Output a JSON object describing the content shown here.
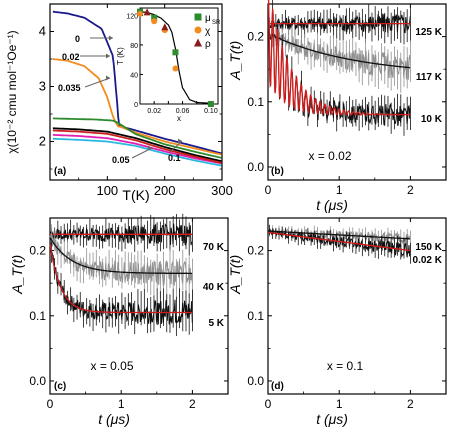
{
  "chart_data": [
    {
      "panel": "a",
      "type": "line",
      "ylabel": "χ(10⁻² cmu mol⁻¹Oe⁻¹)",
      "xlabel": "T(K)",
      "xlim": [
        0,
        300
      ],
      "ylim": [
        1.3,
        4.5
      ],
      "xticks": [
        "100",
        "200",
        "300"
      ],
      "yticks": [
        "2",
        "3",
        "4"
      ],
      "series": [
        {
          "name": "0",
          "color": "#1a1a8c",
          "x": [
            5,
            30,
            60,
            90,
            110,
            118,
            120,
            125,
            150,
            200,
            250,
            300
          ],
          "y": [
            4.36,
            4.33,
            4.25,
            4.05,
            3.55,
            2.6,
            2.28,
            2.27,
            2.2,
            2.05,
            1.92,
            1.78
          ]
        },
        {
          "name": "0.02",
          "color": "#f28c1f",
          "x": [
            5,
            30,
            60,
            85,
            100,
            110,
            118,
            125,
            150,
            200,
            250,
            300
          ],
          "y": [
            3.5,
            3.47,
            3.37,
            3.15,
            2.8,
            2.45,
            2.28,
            2.26,
            2.16,
            2.0,
            1.88,
            1.76
          ]
        },
        {
          "name": "0.035",
          "color": "#2e8b2e",
          "x": [
            5,
            40,
            80,
            110,
            120,
            150,
            200,
            250,
            300
          ],
          "y": [
            2.42,
            2.41,
            2.4,
            2.38,
            2.33,
            2.13,
            1.95,
            1.82,
            1.7
          ]
        },
        {
          "name": "0.05",
          "color": "#e020b0",
          "x": [
            5,
            50,
            100,
            150,
            200,
            250,
            300
          ],
          "y": [
            2.12,
            2.1,
            2.06,
            1.96,
            1.82,
            1.7,
            1.6
          ]
        },
        {
          "name": "0.1",
          "color": "#2bb8e0",
          "x": [
            5,
            50,
            100,
            150,
            200,
            250,
            300
          ],
          "y": [
            2.05,
            2.03,
            2.0,
            1.92,
            1.78,
            1.66,
            1.56
          ]
        },
        {
          "name": "",
          "color": "#000000",
          "x": [
            5,
            50,
            100,
            150,
            200,
            250,
            300
          ],
          "y": [
            2.24,
            2.22,
            2.18,
            2.06,
            1.9,
            1.76,
            1.64
          ]
        },
        {
          "name": "",
          "color": "#cc2020",
          "x": [
            5,
            50,
            100,
            150,
            200,
            250,
            300
          ],
          "y": [
            2.2,
            2.18,
            2.14,
            2.02,
            1.86,
            1.73,
            1.61
          ]
        }
      ],
      "labels": [
        "(a)",
        "0",
        "0.02",
        "0.035",
        "0.05",
        "0.1"
      ],
      "inset": {
        "xlabel": "x",
        "ylabel": "T (K)",
        "xlim": [
          0,
          0.11
        ],
        "ylim": [
          0,
          130
        ],
        "xticks": [
          "0.02",
          "0.04",
          "0.06",
          "0.08",
          "0.10"
        ],
        "yticks": [
          "0",
          "40",
          "80",
          "120"
        ],
        "curve": {
          "x": [
            0,
            0.01,
            0.02,
            0.03,
            0.04,
            0.045,
            0.05,
            0.055,
            0.06,
            0.07,
            0.08,
            0.1
          ],
          "y": [
            125,
            124,
            121,
            116,
            107,
            97,
            75,
            45,
            22,
            6,
            2,
            1
          ]
        },
        "legend": [
          {
            "label": "μ",
            "sub": "SR",
            "marker": "square",
            "color": "#2e8b2e"
          },
          {
            "label": "χ",
            "sub": "",
            "marker": "circle",
            "color": "#f28c1f"
          },
          {
            "label": "ρ",
            "sub": "",
            "marker": "triangle",
            "color": "#8b1a1a"
          }
        ],
        "points": [
          {
            "series": "μSR",
            "marker": "square",
            "color": "#2e8b2e",
            "x": [
              0,
              0.02,
              0.05,
              0.1
            ],
            "y": [
              125,
              117,
              70,
              0
            ]
          },
          {
            "series": "χ",
            "marker": "circle",
            "color": "#f28c1f",
            "x": [
              0,
              0.02,
              0.035,
              0.05
            ],
            "y": [
              122,
              112,
              100,
              48
            ]
          },
          {
            "series": "ρ",
            "marker": "triangle",
            "color": "#8b1a1a",
            "x": [
              0.01,
              0.035
            ],
            "y": [
              124,
              104
            ]
          }
        ]
      }
    },
    {
      "panel": "b",
      "type": "line",
      "ylabel": "A_T(t)",
      "xlabel": "t (μs)",
      "xlim": [
        0,
        2.5
      ],
      "ylim": [
        -0.02,
        0.25
      ],
      "xticks": [
        "0",
        "1",
        "2"
      ],
      "yticks": [
        "0.0",
        "0.1",
        "0.2"
      ],
      "annotation": "x = 0.02",
      "series": [
        {
          "name": "125 K",
          "fit": "exp",
          "a0": 0.22,
          "a1": 0.218,
          "tau": 100,
          "osc_amp": 0,
          "osc_freq": 0,
          "osc_decay": 1,
          "noise": 0.008,
          "kind": "black"
        },
        {
          "name": "117 K",
          "fit": "exp",
          "a0": 0.205,
          "a1": 0.14,
          "tau": 1.2,
          "osc_amp": 0.015,
          "osc_freq": 12,
          "osc_decay": 0.05,
          "noise": 0.01,
          "kind": "gray"
        },
        {
          "name": "10 K",
          "fit": "exp",
          "a0": 0.205,
          "a1": 0.08,
          "tau": 0.3,
          "osc_amp": 0.075,
          "osc_freq": 15,
          "osc_decay": 0.35,
          "noise": 0.008,
          "kind": "black"
        }
      ],
      "labels": [
        "(b)"
      ]
    },
    {
      "panel": "c",
      "type": "line",
      "ylabel": "A_T(t)",
      "xlabel": "t (μs)",
      "xlim": [
        0,
        2.5
      ],
      "ylim": [
        -0.02,
        0.25
      ],
      "xticks": [
        "0",
        "1",
        "2"
      ],
      "yticks": [
        "0.0",
        "0.1",
        "0.2"
      ],
      "annotation": "x = 0.05",
      "series": [
        {
          "name": "70 K",
          "fit": "exp",
          "a0": 0.225,
          "a1": 0.222,
          "tau": 100,
          "osc_amp": 0,
          "osc_freq": 0,
          "osc_decay": 1,
          "noise": 0.008,
          "kind": "black"
        },
        {
          "name": "40 K",
          "fit": "exp",
          "a0": 0.22,
          "a1": 0.165,
          "tau": 0.3,
          "osc_amp": 0,
          "osc_freq": 0,
          "osc_decay": 1,
          "noise": 0.01,
          "kind": "gray"
        },
        {
          "name": "5 K",
          "fit": "exp",
          "a0": 0.21,
          "a1": 0.105,
          "tau": 0.15,
          "osc_amp": 0,
          "osc_freq": 0,
          "osc_decay": 1,
          "noise": 0.01,
          "kind": "black"
        }
      ],
      "labels": [
        "(c)"
      ]
    },
    {
      "panel": "d",
      "type": "line",
      "ylabel": "A_T(t)",
      "xlabel": "t (μs)",
      "xlim": [
        0,
        2.5
      ],
      "ylim": [
        -0.02,
        0.25
      ],
      "xticks": [
        "0",
        "1",
        "2"
      ],
      "yticks": [
        "0.0",
        "0.1",
        "0.2"
      ],
      "annotation": "x = 0.1",
      "series": [
        {
          "name": "150 K",
          "fit": "lin",
          "a0": 0.23,
          "a1": 0.218,
          "tau": 1,
          "osc_amp": 0,
          "osc_freq": 0,
          "osc_decay": 1,
          "noise": 0.004,
          "kind": "gray"
        },
        {
          "name": "0.02 K",
          "fit": "lin",
          "a0": 0.228,
          "a1": 0.2,
          "tau": 1,
          "osc_amp": 0,
          "osc_freq": 0,
          "osc_decay": 1,
          "noise": 0.005,
          "kind": "black"
        }
      ],
      "labels": [
        "(d)"
      ]
    }
  ]
}
